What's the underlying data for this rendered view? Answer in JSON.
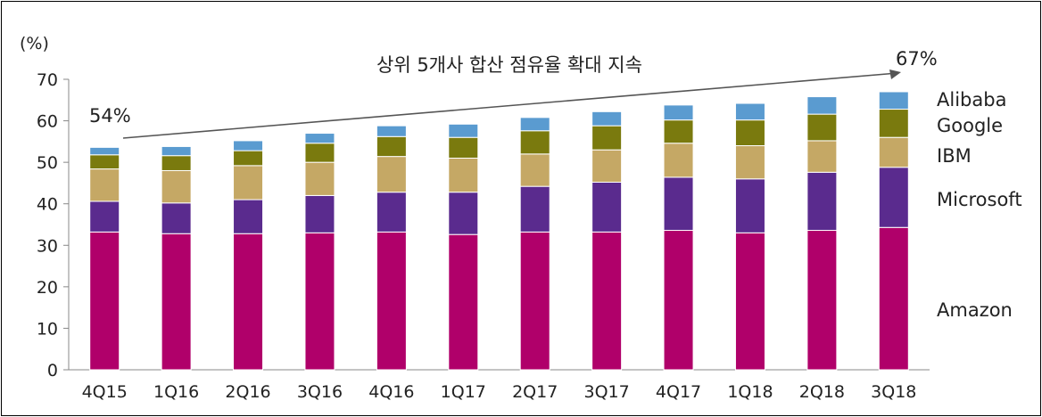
{
  "chart_data": {
    "type": "bar",
    "stacked": true,
    "y_unit_label": "(%)",
    "categories": [
      "4Q15",
      "1Q16",
      "2Q16",
      "3Q16",
      "4Q16",
      "1Q17",
      "2Q17",
      "3Q17",
      "4Q17",
      "1Q18",
      "2Q18",
      "3Q18"
    ],
    "ylim": [
      0,
      70
    ],
    "yticks": [
      0,
      10,
      20,
      30,
      40,
      50,
      60,
      70
    ],
    "grid": false,
    "legend_placement": "right, beside last bar",
    "series": [
      {
        "name": "Amazon",
        "color": "#b0006a",
        "values": [
          33.2,
          32.8,
          32.8,
          33.0,
          33.2,
          32.6,
          33.2,
          33.2,
          33.6,
          33.0,
          33.6,
          34.3
        ]
      },
      {
        "name": "Microsoft",
        "color": "#5a2b8e",
        "values": [
          7.4,
          7.4,
          8.2,
          9.0,
          9.6,
          10.2,
          11.0,
          12.0,
          12.8,
          13.0,
          14.0,
          14.5
        ]
      },
      {
        "name": "IBM",
        "color": "#c5a865",
        "values": [
          7.8,
          7.8,
          8.2,
          8.0,
          8.6,
          8.2,
          7.8,
          7.8,
          8.2,
          8.0,
          7.6,
          7.2
        ]
      },
      {
        "name": "Google",
        "color": "#7a7a0e",
        "values": [
          3.4,
          3.6,
          3.6,
          4.6,
          4.8,
          5.0,
          5.6,
          5.8,
          5.6,
          6.2,
          6.4,
          6.8
        ]
      },
      {
        "name": "Alibaba",
        "color": "#5a9bd0",
        "values": [
          1.8,
          2.2,
          2.4,
          2.4,
          2.6,
          3.2,
          3.2,
          3.4,
          3.6,
          4.0,
          4.2,
          4.2
        ]
      }
    ],
    "annotations": {
      "trend_text": "상위 5개사 합산 점유율 확대 지속",
      "start_label": "54%",
      "end_label": "67%"
    },
    "colors": {
      "axis": "#888888",
      "arrow": "#555555",
      "text": "#222222"
    }
  }
}
